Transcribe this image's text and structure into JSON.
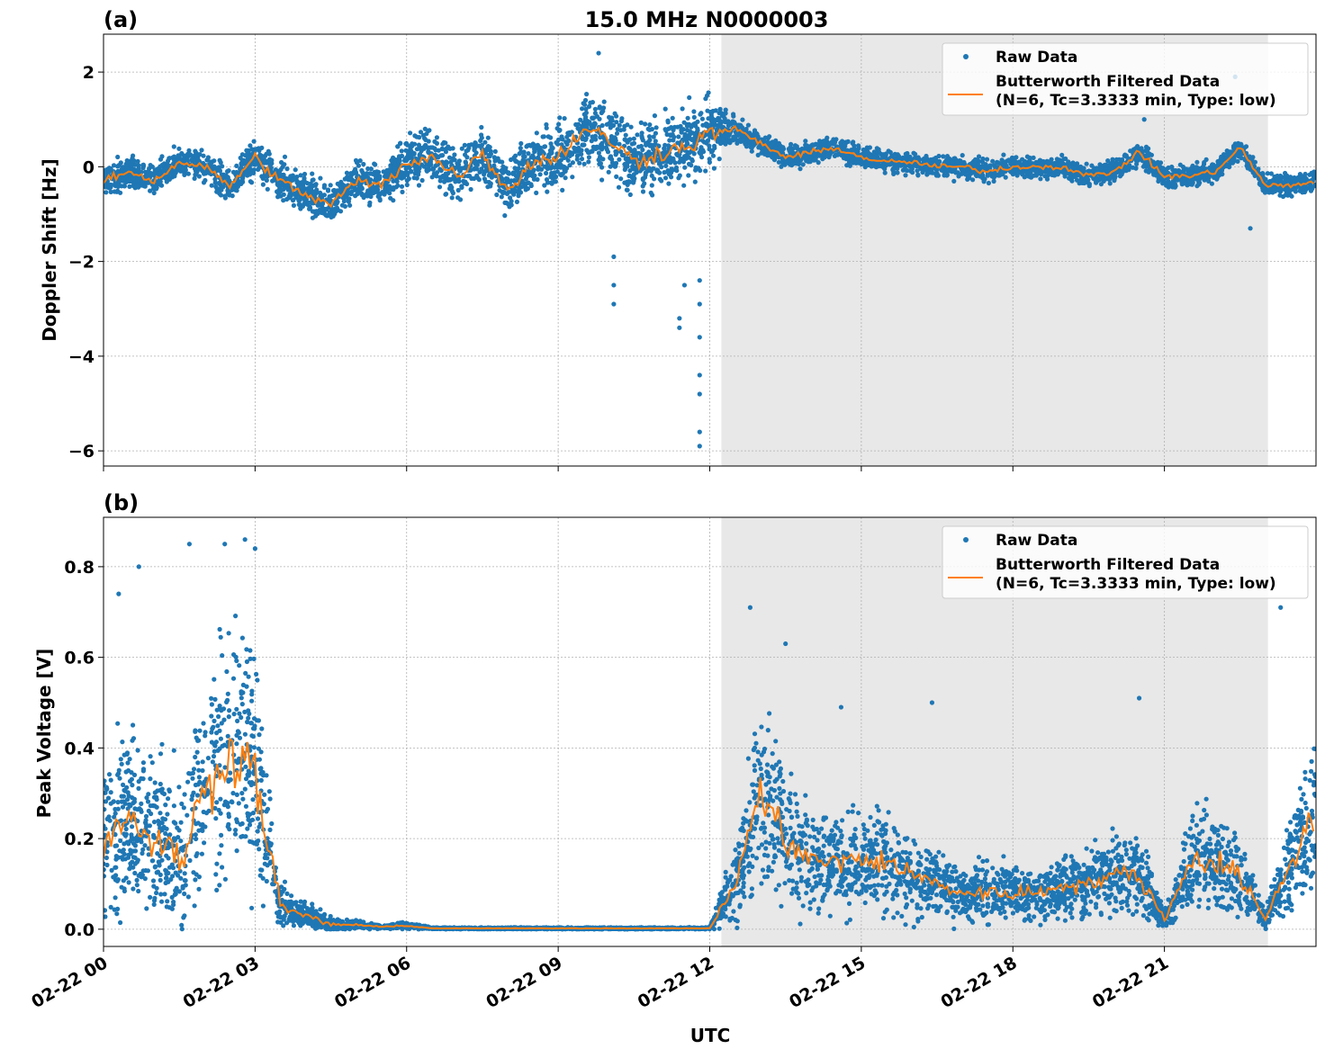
{
  "chart_data": [
    {
      "type": "scatter",
      "panel_label": "(a)",
      "title": "15.0 MHz N0000003",
      "xlabel": "UTC",
      "ylabel": "Doppler Shift [Hz]",
      "xlim_hours": [
        0,
        24
      ],
      "ylim": [
        -6.32,
        2.8
      ],
      "yticks": [
        2,
        0,
        -2,
        -4,
        -6
      ],
      "ytick_labels": [
        "2",
        "0",
        "−2",
        "−4",
        "−6"
      ],
      "grid": true,
      "legend": {
        "placement": "top-right",
        "raw": "Raw Data",
        "filtered_line1": "Butterworth Filtered Data",
        "filtered_line2": "(N=6, Tc=3.3333 min, Type: low)"
      },
      "shaded_region_hours": [
        12.23,
        23.05
      ],
      "x_step_hours": 0.5,
      "filtered": [
        -0.3,
        -0.1,
        -0.3,
        0.1,
        0.0,
        -0.4,
        0.2,
        -0.3,
        -0.6,
        -0.8,
        -0.3,
        -0.4,
        0.1,
        0.2,
        -0.2,
        0.3,
        -0.5,
        0.1,
        0.2,
        0.8,
        0.6,
        0.1,
        0.3,
        0.4,
        0.7,
        0.8,
        0.5,
        0.2,
        0.3,
        0.4,
        0.2,
        0.1,
        0.1,
        0.0,
        0.0,
        -0.1,
        0.0,
        0.0,
        0.0,
        -0.2,
        -0.1,
        0.3,
        -0.2,
        -0.2,
        -0.1,
        0.4,
        -0.4,
        -0.4,
        -0.3
      ],
      "raw_spread": [
        0.35,
        0.35,
        0.35,
        0.35,
        0.35,
        0.35,
        0.45,
        0.45,
        0.45,
        0.45,
        0.45,
        0.45,
        0.6,
        0.6,
        0.6,
        0.6,
        0.6,
        0.6,
        0.8,
        0.8,
        0.8,
        0.8,
        0.8,
        0.8,
        0.8,
        0.25,
        0.25,
        0.25,
        0.25,
        0.25,
        0.25,
        0.25,
        0.25,
        0.25,
        0.25,
        0.25,
        0.25,
        0.25,
        0.25,
        0.25,
        0.25,
        0.25,
        0.25,
        0.25,
        0.25,
        0.25,
        0.25,
        0.25,
        0.25
      ],
      "raw_outliers": [
        [
          9.8,
          2.4
        ],
        [
          10.1,
          -2.9
        ],
        [
          10.1,
          -2.5
        ],
        [
          10.1,
          -1.9
        ],
        [
          11.4,
          -3.4
        ],
        [
          11.4,
          -3.2
        ],
        [
          11.5,
          -2.5
        ],
        [
          11.8,
          -5.9
        ],
        [
          11.8,
          -5.6
        ],
        [
          11.8,
          -4.8
        ],
        [
          11.8,
          -4.4
        ],
        [
          11.8,
          -3.6
        ],
        [
          11.8,
          -2.9
        ],
        [
          11.8,
          -2.4
        ],
        [
          20.6,
          1.0
        ],
        [
          22.4,
          1.9
        ],
        [
          22.7,
          -1.3
        ]
      ]
    },
    {
      "type": "scatter",
      "panel_label": "(b)",
      "xlabel": "UTC",
      "ylabel": "Peak Voltage [V]",
      "xlim_hours": [
        0,
        24
      ],
      "ylim": [
        -0.038,
        0.909
      ],
      "yticks": [
        0.0,
        0.2,
        0.4,
        0.6,
        0.8
      ],
      "ytick_labels": [
        "0.0",
        "0.2",
        "0.4",
        "0.6",
        "0.8"
      ],
      "xtick_labels": [
        "02-22 00",
        "02-22 03",
        "02-22 06",
        "02-22 09",
        "02-22 12",
        "02-22 15",
        "02-22 18",
        "02-22 21"
      ],
      "grid": true,
      "legend": {
        "placement": "top-right",
        "raw": "Raw Data",
        "filtered_line1": "Butterworth Filtered Data",
        "filtered_line2": "(N=6, Tc=3.3333 min, Type: low)"
      },
      "shaded_region_hours": [
        12.23,
        23.05
      ],
      "x_step_hours": 0.5,
      "filtered": [
        0.2,
        0.25,
        0.2,
        0.15,
        0.3,
        0.4,
        0.35,
        0.05,
        0.03,
        0.01,
        0.01,
        0.005,
        0.008,
        0.002,
        0.002,
        0.002,
        0.002,
        0.002,
        0.002,
        0.002,
        0.002,
        0.002,
        0.002,
        0.002,
        0.002,
        0.1,
        0.3,
        0.2,
        0.15,
        0.15,
        0.15,
        0.15,
        0.12,
        0.1,
        0.08,
        0.08,
        0.08,
        0.08,
        0.1,
        0.1,
        0.12,
        0.12,
        0.02,
        0.15,
        0.15,
        0.12,
        0.02,
        0.15,
        0.25
      ],
      "raw_spread": [
        0.2,
        0.2,
        0.2,
        0.2,
        0.25,
        0.3,
        0.3,
        0.05,
        0.03,
        0.02,
        0.01,
        0.005,
        0.008,
        0.002,
        0.002,
        0.002,
        0.002,
        0.002,
        0.002,
        0.002,
        0.002,
        0.002,
        0.002,
        0.002,
        0.002,
        0.1,
        0.25,
        0.15,
        0.12,
        0.12,
        0.12,
        0.12,
        0.1,
        0.08,
        0.07,
        0.07,
        0.07,
        0.07,
        0.08,
        0.08,
        0.1,
        0.1,
        0.02,
        0.12,
        0.12,
        0.1,
        0.02,
        0.12,
        0.2
      ],
      "raw_outliers": [
        [
          0.3,
          0.74
        ],
        [
          0.7,
          0.8
        ],
        [
          1.7,
          0.85
        ],
        [
          2.4,
          0.85
        ],
        [
          2.8,
          0.86
        ],
        [
          3.0,
          0.84
        ],
        [
          12.8,
          0.71
        ],
        [
          13.5,
          0.63
        ],
        [
          14.6,
          0.49
        ],
        [
          16.4,
          0.5
        ],
        [
          20.5,
          0.51
        ],
        [
          23.3,
          0.71
        ]
      ]
    }
  ]
}
